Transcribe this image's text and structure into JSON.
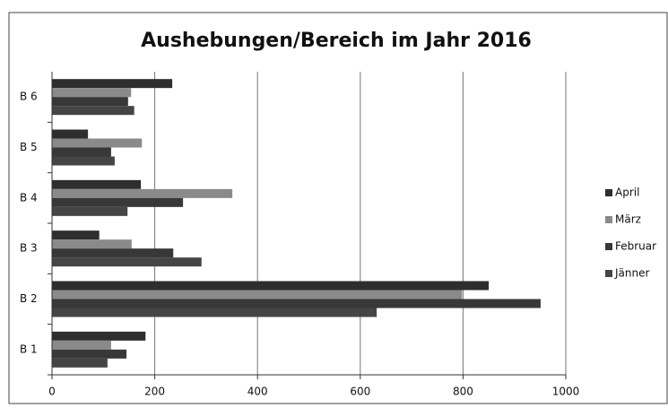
{
  "chart_data": {
    "type": "barh",
    "title": "Aushebungen/Bereich im Jahr 2016",
    "categories": [
      "B 1",
      "B 2",
      "B 3",
      "B 4",
      "B 5",
      "B 6"
    ],
    "series": [
      {
        "name": "April",
        "color": "#2e2e2e",
        "values": [
          182,
          850,
          92,
          173,
          70,
          234
        ]
      },
      {
        "name": "März",
        "color": "#8a8a8a",
        "values": [
          115,
          798,
          155,
          351,
          175,
          154
        ]
      },
      {
        "name": "Februar",
        "color": "#383838",
        "values": [
          145,
          951,
          236,
          255,
          115,
          148
        ]
      },
      {
        "name": "Jänner",
        "color": "#454545",
        "values": [
          108,
          632,
          291,
          147,
          122,
          160
        ]
      }
    ],
    "xlim": [
      0,
      1000
    ],
    "xticks": [
      0,
      200,
      400,
      600,
      800,
      1000
    ],
    "grid": true,
    "legend": "right"
  }
}
